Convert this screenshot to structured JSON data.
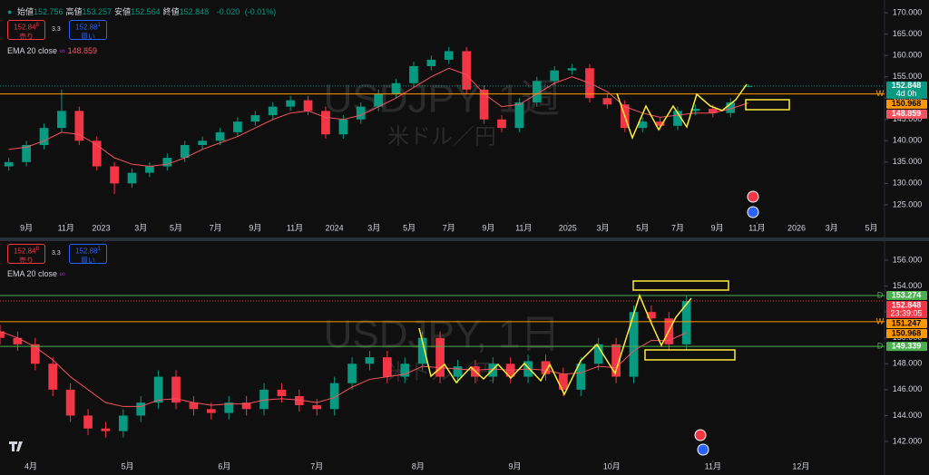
{
  "chart_data": [
    {
      "type": "candlestick",
      "watermark": "USDJPY, 1週",
      "watermark_sub": "米ドル／円",
      "header": {
        "items": [
          {
            "label": "始値",
            "value": "152.756"
          },
          {
            "label": "高値",
            "value": "153.257"
          },
          {
            "label": "安値",
            "value": "152.564"
          },
          {
            "label": "終値",
            "value": "152.848"
          }
        ],
        "change": "-0.020",
        "change_pct": "(-0.01%)"
      },
      "sell": {
        "price": "152.84",
        "sup": "8",
        "label": "売り"
      },
      "spread": "3.3",
      "buy": {
        "price": "152.88",
        "sup": "1",
        "label": "買い"
      },
      "indicator": {
        "name": "EMA 20 close",
        "value": "148.859",
        "color": "#f7525f"
      },
      "x": [
        2,
        6,
        10,
        14,
        18,
        22,
        26,
        30,
        34,
        38,
        42,
        46,
        50,
        54,
        58,
        62,
        66,
        70,
        74,
        78,
        82,
        86,
        90,
        94,
        98,
        102,
        106,
        110,
        114,
        118,
        122,
        126,
        130,
        134,
        138,
        142,
        146,
        150,
        154,
        158,
        162,
        166,
        170
      ],
      "open": [
        134,
        135,
        139,
        143,
        147,
        140,
        134,
        130,
        132.5,
        134,
        136,
        139,
        140,
        142,
        144.5,
        146,
        148,
        149.5,
        147,
        141.5,
        145,
        148,
        151,
        153.5,
        157.5,
        159,
        161,
        152,
        145,
        143,
        149,
        154,
        156.5,
        157,
        150,
        148.5,
        143,
        144.5,
        143.5,
        147,
        147.5,
        146.5,
        152.756
      ],
      "high": [
        136,
        140,
        144,
        152,
        148,
        141,
        135,
        133.5,
        135,
        137,
        140,
        141,
        143,
        145.5,
        147,
        149,
        150.5,
        150.5,
        148,
        146,
        149,
        152,
        154.5,
        158.5,
        160,
        162,
        162,
        153,
        146,
        150,
        155,
        157.5,
        158,
        158,
        151,
        149.5,
        145.5,
        145.5,
        148,
        148.5,
        148.5,
        150,
        153.257
      ],
      "low": [
        133,
        134,
        138,
        142,
        139,
        133,
        127.5,
        129,
        131.5,
        133,
        135,
        138,
        139,
        141,
        143.5,
        145,
        147,
        146,
        140.5,
        140.5,
        144,
        147,
        150,
        152.5,
        156.5,
        158,
        151,
        144,
        142,
        142,
        148,
        153,
        155.5,
        149,
        147.5,
        142,
        142,
        142.5,
        142.5,
        146,
        145.5,
        145.5,
        152.564
      ],
      "close": [
        135,
        139,
        143,
        147,
        140,
        134,
        130,
        132.5,
        134,
        136,
        139,
        140,
        142,
        144.5,
        146,
        148,
        149.5,
        147,
        141.5,
        145,
        148,
        151,
        153.5,
        157.5,
        159,
        161,
        152,
        145,
        143,
        149,
        154,
        156.5,
        157,
        150,
        148.5,
        143,
        144.5,
        143.5,
        147,
        147.5,
        146.5,
        149,
        152.848
      ],
      "ema": [
        138,
        138.5,
        140,
        142,
        141.5,
        139,
        136,
        134.5,
        134,
        134.5,
        136,
        138,
        139.5,
        141,
        143,
        145,
        146.5,
        147,
        145.5,
        145,
        146,
        148,
        150,
        152.5,
        155,
        157,
        155.5,
        151,
        148,
        148.5,
        151,
        153.5,
        155,
        153.5,
        151.5,
        148,
        146.5,
        145.5,
        146,
        146.5,
        146.5,
        147.5,
        148.859
      ],
      "up_color": "#089981",
      "down_color": "#f23645",
      "xlim": [
        0,
        201
      ],
      "ylim": [
        122,
        173
      ],
      "xticks": [
        {
          "value": 6,
          "label": "9月"
        },
        {
          "value": 15,
          "label": "11月"
        },
        {
          "value": 23,
          "label": "2023"
        },
        {
          "value": 32,
          "label": "3月"
        },
        {
          "value": 40,
          "label": "5月"
        },
        {
          "value": 49,
          "label": "7月"
        },
        {
          "value": 58,
          "label": "9月"
        },
        {
          "value": 67,
          "label": "11月"
        },
        {
          "value": 76,
          "label": "2024"
        },
        {
          "value": 85,
          "label": "3月"
        },
        {
          "value": 93,
          "label": "5月"
        },
        {
          "value": 102,
          "label": "7月"
        },
        {
          "value": 111,
          "label": "9月"
        },
        {
          "value": 119,
          "label": "11月"
        },
        {
          "value": 129,
          "label": "2025"
        },
        {
          "value": 137,
          "label": "3月"
        },
        {
          "value": 146,
          "label": "5月"
        },
        {
          "value": 154,
          "label": "7月"
        },
        {
          "value": 163,
          "label": "9月"
        },
        {
          "value": 172,
          "label": "11月"
        },
        {
          "value": 181,
          "label": "2026"
        },
        {
          "value": 189,
          "label": "3月"
        },
        {
          "value": 198,
          "label": "5月"
        }
      ],
      "yticks": [
        {
          "value": 125,
          "label": "125.000"
        },
        {
          "value": 130,
          "label": "130.000"
        },
        {
          "value": 135,
          "label": "135.000"
        },
        {
          "value": 140,
          "label": "140.000"
        },
        {
          "value": 145,
          "label": "145.000"
        },
        {
          "value": 150,
          "label": "150.000"
        },
        {
          "value": 155,
          "label": "155.000"
        },
        {
          "value": 160,
          "label": "160.000"
        },
        {
          "value": 165,
          "label": "165.000"
        },
        {
          "value": 170,
          "label": "170.000"
        }
      ],
      "price_labels": [
        {
          "value": 152.848,
          "color": "#089981",
          "text_color": "#ffffff",
          "sub": "4d 0h",
          "line": "dotted"
        },
        {
          "value": 150.968,
          "color": "#ff9800",
          "text_color": "#000000",
          "line": "solid",
          "tag": "W"
        },
        {
          "value": 148.859,
          "color": "#f7525f",
          "text_color": "#ffffff"
        }
      ]
    },
    {
      "type": "candlestick",
      "watermark": "USDJPY, 1日",
      "watermark_sub": "米ドル／円",
      "sell": {
        "price": "152.84",
        "sup": "8",
        "label": "売り"
      },
      "spread": "3.3",
      "buy": {
        "price": "152.88",
        "sup": "1",
        "label": "買い"
      },
      "indicator": {
        "name": "EMA 20 close",
        "color": "#f7525f"
      },
      "x": [
        0,
        4,
        8,
        12,
        16,
        20,
        24,
        28,
        32,
        36,
        40,
        44,
        48,
        52,
        56,
        60,
        64,
        68,
        72,
        76,
        80,
        84,
        88,
        92,
        96,
        100,
        104,
        108,
        112,
        116,
        120,
        124,
        128,
        132,
        136,
        140,
        144,
        148,
        152,
        156
      ],
      "open": [
        150.5,
        150,
        149.5,
        148,
        146,
        144,
        143,
        142.8,
        144,
        145,
        147,
        145,
        144.5,
        144.2,
        145,
        144.5,
        146,
        145.5,
        144.8,
        144.5,
        146.5,
        148,
        148.5,
        147,
        148,
        150,
        147,
        147.8,
        147,
        148,
        147,
        148.2,
        147.2,
        146,
        148,
        149.5,
        147,
        152,
        151.5,
        149.5
      ],
      "high": [
        151,
        150.5,
        150,
        148.5,
        146.5,
        144.5,
        143.5,
        144.5,
        145.5,
        147.5,
        147.5,
        145.5,
        145,
        145.5,
        145.5,
        146.5,
        146.5,
        146,
        145.3,
        147,
        148.5,
        149,
        149,
        148.5,
        150.5,
        150.5,
        148.3,
        148.3,
        148.5,
        148.5,
        148.7,
        148.7,
        147.7,
        148.5,
        150,
        150,
        152.5,
        152.5,
        152,
        153.257
      ],
      "low": [
        149.5,
        149,
        147.5,
        145.5,
        143.5,
        142.5,
        142.3,
        142.3,
        143.5,
        144.5,
        144.5,
        144,
        143.7,
        143.7,
        144,
        144,
        145,
        144.3,
        144,
        144,
        146,
        147.5,
        146.5,
        146.5,
        147.5,
        146.5,
        146.5,
        146.5,
        146.5,
        146.5,
        146.5,
        146.7,
        145.5,
        145.5,
        147.5,
        146.5,
        146.5,
        151,
        149,
        149
      ],
      "close": [
        150,
        149.5,
        148,
        146,
        144,
        143,
        142.8,
        144,
        145,
        147,
        145,
        144.5,
        144.2,
        145,
        144.5,
        146,
        145.5,
        144.8,
        144.5,
        146.5,
        148,
        148.5,
        147,
        148,
        150,
        147,
        147.8,
        147,
        148,
        147,
        148.2,
        147.2,
        146,
        148,
        149.5,
        147,
        152,
        151.5,
        149.5,
        152.848
      ],
      "ema": [
        150.5,
        150,
        149.3,
        148.3,
        147,
        146,
        145,
        144.7,
        144.7,
        145.2,
        145.3,
        145,
        144.8,
        144.9,
        144.9,
        145.2,
        145.3,
        145.2,
        145,
        145.4,
        146.2,
        146.8,
        147,
        147.2,
        147.8,
        147.7,
        147.6,
        147.5,
        147.6,
        147.5,
        147.6,
        147.5,
        147.2,
        147.3,
        147.8,
        147.7,
        149,
        149.8,
        149.8,
        150.4
      ],
      "up_color": "#089981",
      "down_color": "#f23645",
      "xlim": [
        0,
        201
      ],
      "ylim": [
        140.74,
        157.33
      ],
      "xticks": [
        {
          "value": 7,
          "label": "4月"
        },
        {
          "value": 29,
          "label": "5月"
        },
        {
          "value": 51,
          "label": "6月"
        },
        {
          "value": 72,
          "label": "7月"
        },
        {
          "value": 95,
          "label": "8月"
        },
        {
          "value": 117,
          "label": "9月"
        },
        {
          "value": 139,
          "label": "10月"
        },
        {
          "value": 162,
          "label": "11月"
        },
        {
          "value": 182,
          "label": "12月"
        }
      ],
      "yticks": [
        {
          "value": 142,
          "label": "142.000"
        },
        {
          "value": 144,
          "label": "144.000"
        },
        {
          "value": 146,
          "label": "146.000"
        },
        {
          "value": 148,
          "label": "148.000"
        },
        {
          "value": 150,
          "label": "150.000"
        },
        {
          "value": 152,
          "label": "152.000"
        },
        {
          "value": 154,
          "label": "154.000"
        },
        {
          "value": 156,
          "label": "156.000"
        }
      ],
      "price_labels": [
        {
          "value": 153.274,
          "color": "#4caf50",
          "text_color": "#ffffff",
          "line": "solid",
          "tag": "D"
        },
        {
          "value": 152.848,
          "color": "#f23645",
          "text_color": "#ffffff",
          "sub": "23:39:05",
          "line": "dotted"
        },
        {
          "value": 151.247,
          "color": "#ff9800",
          "text_color": "#000000",
          "line": "solid",
          "tag": "W"
        },
        {
          "value": 150.968,
          "color": "#ff9800",
          "text_color": "#000000"
        },
        {
          "value": 149.339,
          "color": "#4caf50",
          "text_color": "#ffffff",
          "line": "solid",
          "tag": "D"
        }
      ]
    }
  ]
}
